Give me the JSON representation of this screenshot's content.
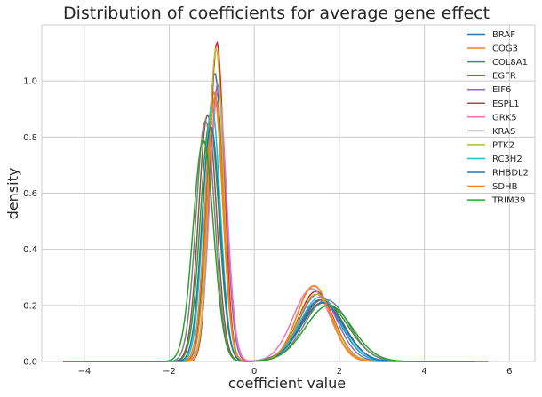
{
  "chart_data": {
    "type": "line",
    "title": "Distribution of coefficients for average gene effect",
    "xlabel": "coefficient value",
    "ylabel": "density",
    "xlim": [
      -5.0,
      6.6
    ],
    "ylim": [
      0,
      1.2
    ],
    "xticks": [
      -4,
      -2,
      0,
      2,
      4,
      6
    ],
    "yticks": [
      0.0,
      0.2,
      0.4,
      0.6,
      0.8,
      1.0
    ],
    "grid": true,
    "legend_position": "top-right",
    "series": [
      {
        "name": "BRAF",
        "color": "#1f77b4",
        "x_range": [
          -4.0,
          5.5
        ],
        "peaks": [
          [
            -0.93,
            1.03,
            0.19
          ],
          [
            1.55,
            0.22,
            0.48
          ]
        ]
      },
      {
        "name": "COG3",
        "color": "#ff7f0e",
        "x_range": [
          -4.0,
          5.5
        ],
        "peaks": [
          [
            -0.95,
            0.96,
            0.2
          ],
          [
            1.4,
            0.27,
            0.4
          ]
        ]
      },
      {
        "name": "COL8A1",
        "color": "#2ca02c",
        "x_range": [
          -4.5,
          5.2
        ],
        "peaks": [
          [
            -1.05,
            0.85,
            0.22
          ],
          [
            1.65,
            0.21,
            0.55
          ]
        ]
      },
      {
        "name": "EGFR",
        "color": "#d62728",
        "x_range": [
          -4.0,
          5.5
        ],
        "peaks": [
          [
            -0.88,
            1.14,
            0.17
          ],
          [
            1.45,
            0.25,
            0.42
          ]
        ]
      },
      {
        "name": "EIF6",
        "color": "#9467bd",
        "x_range": [
          -4.0,
          5.5
        ],
        "peaks": [
          [
            -0.86,
            0.99,
            0.19
          ],
          [
            1.5,
            0.24,
            0.45
          ]
        ]
      },
      {
        "name": "ESPL1",
        "color": "#8c564b",
        "x_range": [
          -4.0,
          5.5
        ],
        "peaks": [
          [
            -1.1,
            0.88,
            0.21
          ],
          [
            1.6,
            0.22,
            0.5
          ]
        ]
      },
      {
        "name": "GRK5",
        "color": "#e377c2",
        "x_range": [
          -4.0,
          5.5
        ],
        "peaks": [
          [
            -0.85,
            0.97,
            0.2
          ],
          [
            1.35,
            0.26,
            0.44
          ]
        ]
      },
      {
        "name": "KRAS",
        "color": "#7f7f7f",
        "x_range": [
          -4.0,
          5.5
        ],
        "peaks": [
          [
            -1.15,
            0.86,
            0.22
          ],
          [
            1.7,
            0.22,
            0.52
          ]
        ]
      },
      {
        "name": "PTK2",
        "color": "#bcbd22",
        "x_range": [
          -4.0,
          5.5
        ],
        "peaks": [
          [
            -0.9,
            1.12,
            0.17
          ],
          [
            1.45,
            0.24,
            0.42
          ]
        ]
      },
      {
        "name": "RC3H2",
        "color": "#17becf",
        "x_range": [
          -4.0,
          5.5
        ],
        "peaks": [
          [
            -1.0,
            0.91,
            0.2
          ],
          [
            1.55,
            0.23,
            0.48
          ]
        ]
      },
      {
        "name": "RHBDL2",
        "color": "#1f77b4",
        "x_range": [
          -4.0,
          5.5
        ],
        "peaks": [
          [
            -1.02,
            0.84,
            0.21
          ],
          [
            1.6,
            0.21,
            0.5
          ]
        ]
      },
      {
        "name": "SDHB",
        "color": "#ff7f0e",
        "x_range": [
          -4.0,
          5.5
        ],
        "peaks": [
          [
            -0.92,
            0.95,
            0.19
          ],
          [
            1.4,
            0.27,
            0.4
          ]
        ]
      },
      {
        "name": "TRIM39",
        "color": "#2ca02c",
        "x_range": [
          -4.5,
          5.2
        ],
        "peaks": [
          [
            -1.2,
            0.79,
            0.24
          ],
          [
            1.75,
            0.2,
            0.55
          ]
        ]
      }
    ]
  }
}
